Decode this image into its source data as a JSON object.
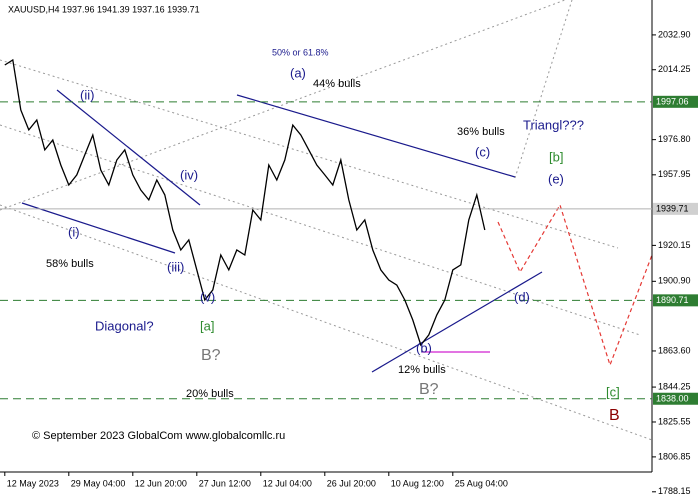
{
  "chart_data": {
    "type": "line",
    "title": "XAUUSD,H4  1937.96 1941.39 1937.16 1939.71",
    "color": "#000000",
    "values": [
      2016.8,
      2019.5,
      1992.7,
      1982.0,
      1987.3,
      1971.3,
      1976.6,
      1963.2,
      1952.5,
      1957.9,
      1968.6,
      1979.3,
      1960.5,
      1952.5,
      1965.9,
      1971.3,
      1957.9,
      1949.8,
      1944.5,
      1955.2,
      1947.2,
      1928.4,
      1917.7,
      1923.1,
      1907.0,
      1890.9,
      1896.3,
      1915.0,
      1907.0,
      1917.7,
      1915.0,
      1939.1,
      1933.8,
      1963.2,
      1955.2,
      1965.9,
      1984.6,
      1979.3,
      1971.3,
      1963.2,
      1957.9,
      1952.5,
      1965.9,
      1944.5,
      1928.4,
      1933.8,
      1917.7,
      1907.0,
      1901.6,
      1898.9,
      1890.9,
      1880.2,
      1866.8,
      1872.2,
      1882.9,
      1890.9,
      1907.0,
      1909.7,
      1933.8,
      1947.2,
      1928.4
    ],
    "xlim": [
      -0.6,
      80.9
    ],
    "xticks": [
      {
        "value": 0,
        "label": "12 May 2023"
      },
      {
        "value": 8,
        "label": "29 May 04:00"
      },
      {
        "value": 16,
        "label": "12 Jun 20:00"
      },
      {
        "value": 24,
        "label": "27 Jun 12:00"
      },
      {
        "value": 32,
        "label": "12 Jul 04:00"
      },
      {
        "value": 40,
        "label": "26 Jul 20:00"
      },
      {
        "value": 48,
        "label": "10 Aug 12:00"
      },
      {
        "value": 56,
        "label": "25 Aug 04:00"
      }
    ],
    "ylim": [
      1785.9,
      2051.6
    ],
    "yticks": [
      {
        "value": 2032.9,
        "label": "2032.90"
      },
      2014.25,
      {
        "value": 1976.8,
        "label": "1976.80"
      },
      1957.95,
      1920.15,
      {
        "value": 1900.9,
        "label": "1900.90"
      },
      {
        "value": 1863.6,
        "label": "1863.60"
      },
      1844.25,
      1825.55,
      1806.85,
      1788.15
    ],
    "levels": [
      {
        "value": 1997.06,
        "label": "1997.06",
        "color": "#2e7d32"
      },
      {
        "value": 1939.71,
        "label": "1939.71",
        "color": "#b0b0b0"
      },
      {
        "value": 1890.71,
        "label": "1890.71",
        "color": "#2e7d32"
      },
      {
        "value": 1838,
        "label": "1838.00",
        "color": "#2e7d32"
      }
    ],
    "annotations": [
      "50% or 61.8%",
      "(a)",
      "44% bulls",
      "36% bulls",
      "Triangl???",
      "(c)",
      "[b]",
      "(e)",
      "(ii)",
      "(iv)",
      "(i)",
      "58% bulls",
      "(iii)",
      "(v)",
      "Diagonal?",
      "[a]",
      "B?",
      "20% bulls",
      "(b)",
      "12% bulls",
      "B?",
      "(d)",
      "[c]",
      "B",
      "© September 2023 GlobalCom www.globalcomllc.ru"
    ]
  }
}
